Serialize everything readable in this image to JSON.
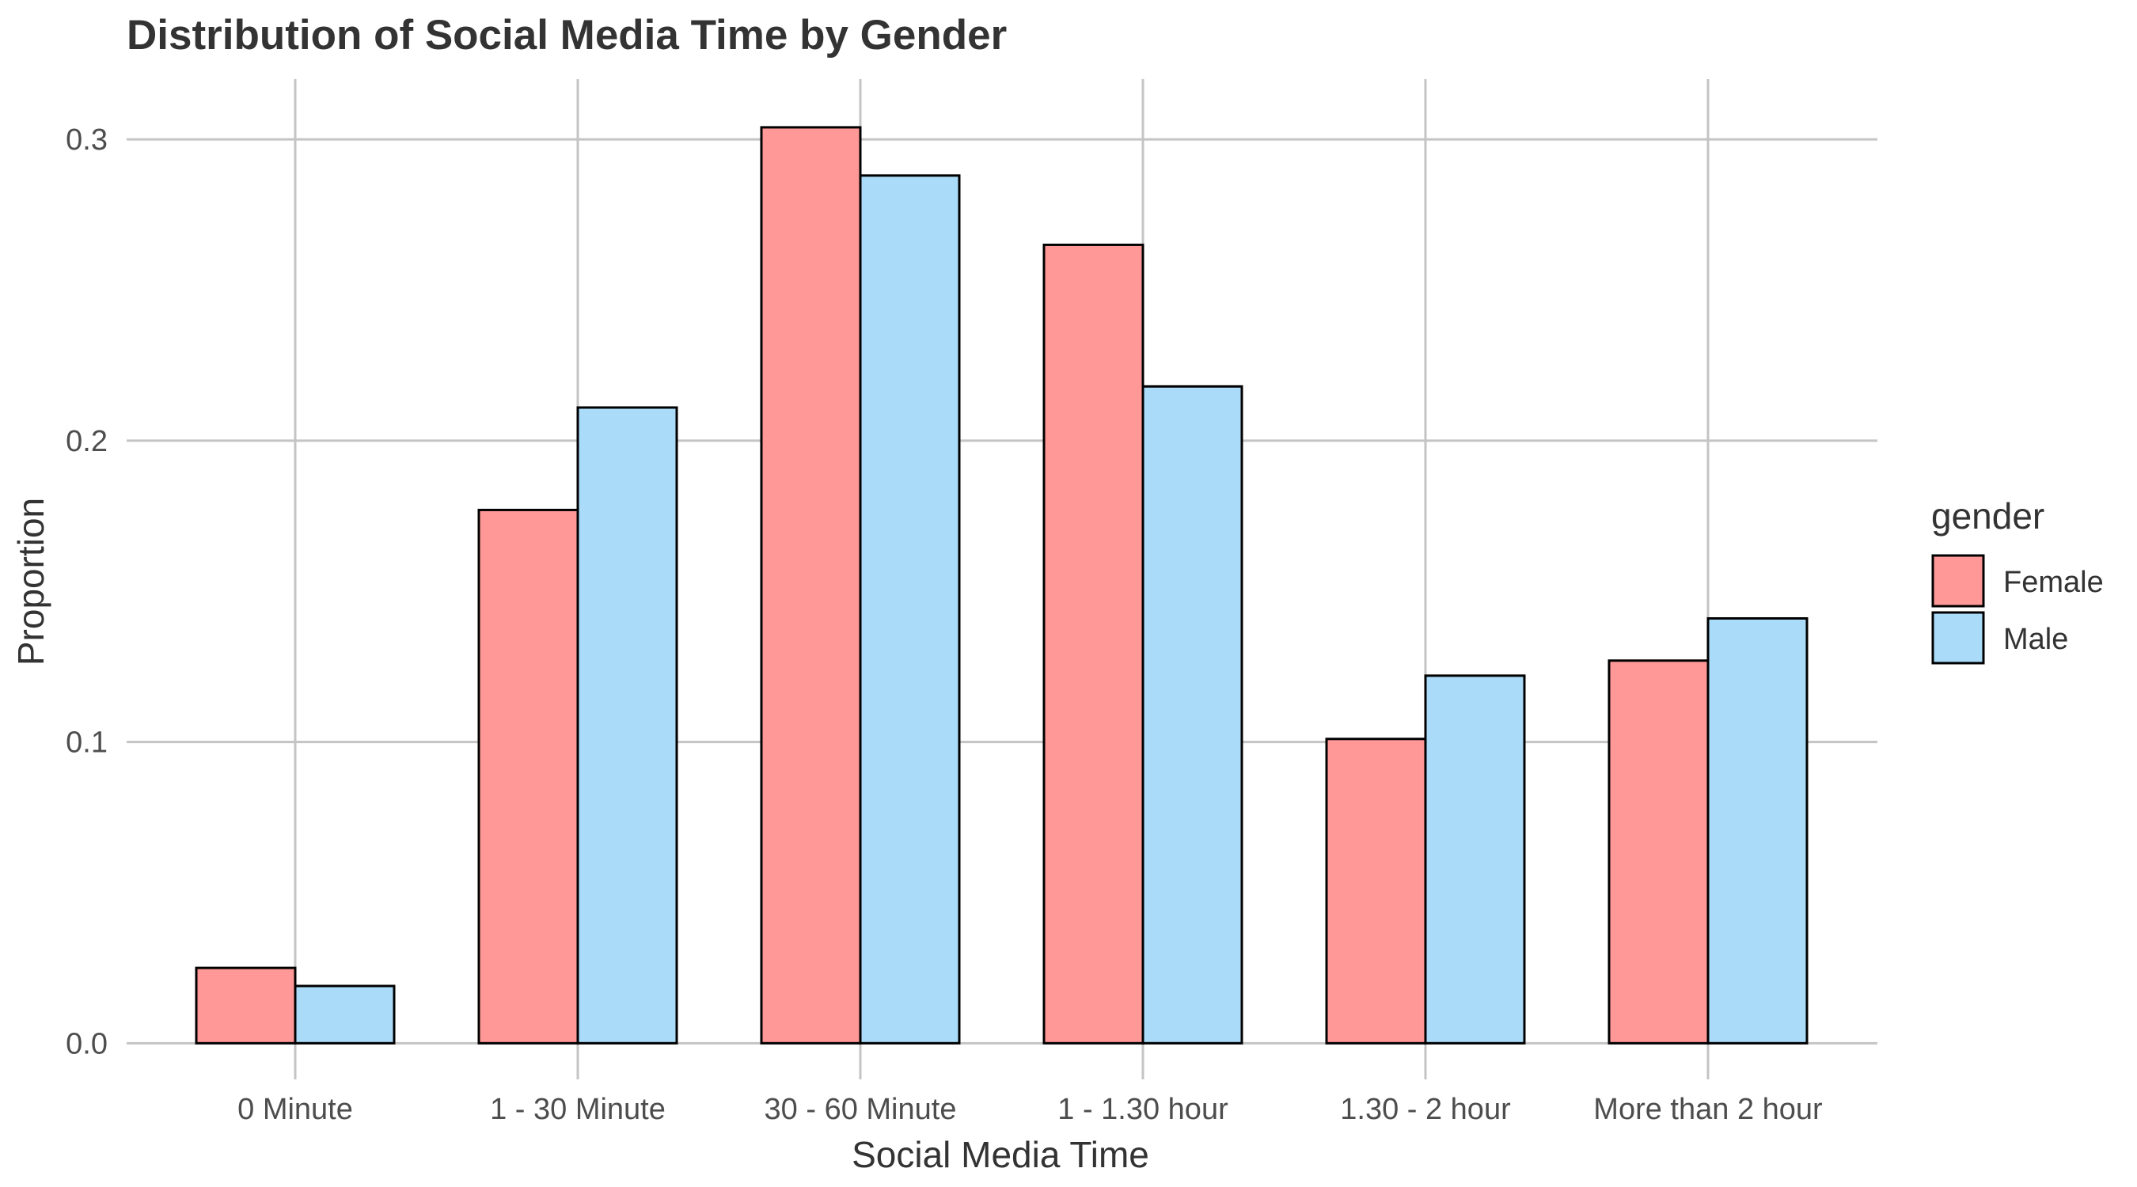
{
  "chart_data": {
    "type": "bar",
    "title": "Distribution of Social Media Time by Gender",
    "xlabel": "Social Media Time",
    "ylabel": "Proportion",
    "categories": [
      "0 Minute",
      "1 - 30 Minute",
      "30 - 60 Minute",
      "1 - 1.30 hour",
      "1.30 - 2 hour",
      "More than 2 hour"
    ],
    "series": [
      {
        "name": "Female",
        "color": "#ff9896",
        "values": [
          0.025,
          0.177,
          0.304,
          0.265,
          0.101,
          0.127
        ]
      },
      {
        "name": "Male",
        "color": "#aadcfa",
        "values": [
          0.019,
          0.211,
          0.288,
          0.218,
          0.122,
          0.141
        ]
      }
    ],
    "ylim": [
      -0.012,
      0.32
    ],
    "yticks": [
      0.0,
      0.1,
      0.2,
      0.3
    ],
    "ytick_labels": [
      "0.0",
      "0.1",
      "0.2",
      "0.3"
    ],
    "grid": true,
    "legend": {
      "title": "gender",
      "position": "right"
    }
  }
}
